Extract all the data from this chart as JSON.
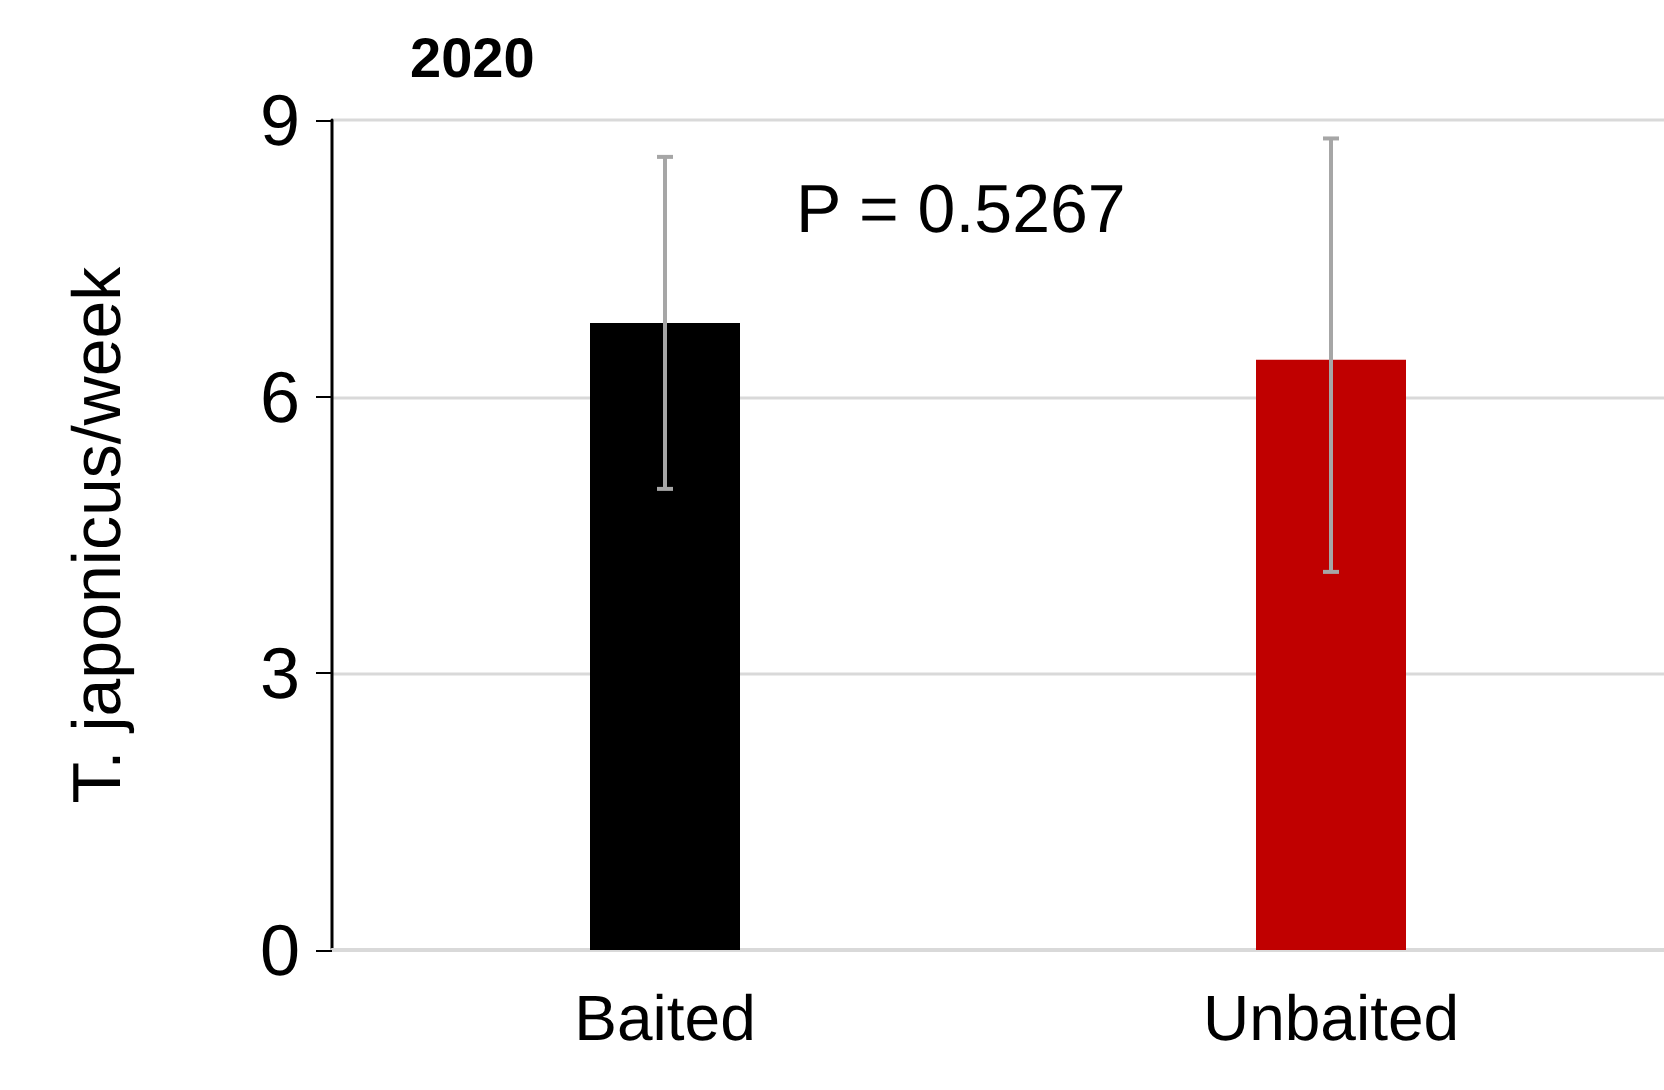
{
  "chart_data": {
    "type": "bar",
    "title": "2020",
    "ylabel": "T. japonicus/week",
    "categories": [
      "Baited",
      "Unbaited"
    ],
    "values": [
      6.8,
      6.4
    ],
    "colors": [
      "#000000",
      "#c00000"
    ],
    "errors": [
      [
        5.0,
        8.6
      ],
      [
        4.1,
        8.8
      ]
    ],
    "ylim": [
      0,
      9
    ],
    "yticks": [
      0,
      3,
      6,
      9
    ],
    "grid": "y",
    "annotations": [
      "P = 0.5267"
    ]
  }
}
